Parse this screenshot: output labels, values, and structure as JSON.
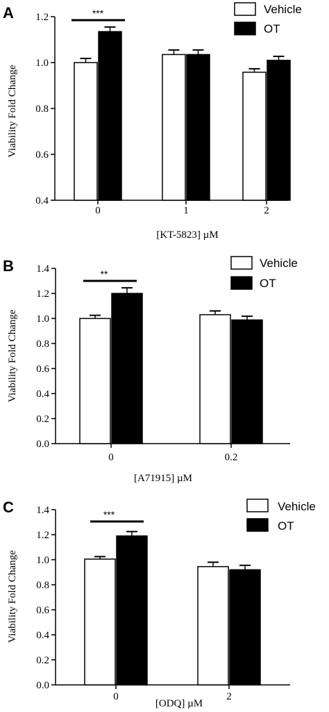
{
  "chart_data": [
    {
      "panel": "A",
      "type": "bar",
      "xlabel": "[KT-5823] µM",
      "ylabel": "Viability Fold Change",
      "ylim": [
        0.4,
        1.2
      ],
      "yticks": [
        "0.4",
        "0.6",
        "0.8",
        "1.0",
        "1.2"
      ],
      "categories": [
        "0",
        "1",
        "2"
      ],
      "series": [
        {
          "name": "Vehicle",
          "values": [
            1.0,
            1.035,
            0.958
          ],
          "errors": [
            0.018,
            0.02,
            0.015
          ],
          "fill": "#ffffff"
        },
        {
          "name": "OT",
          "values": [
            1.135,
            1.035,
            1.01
          ],
          "errors": [
            0.02,
            0.02,
            0.017
          ],
          "fill": "#000000"
        }
      ],
      "significance": [
        {
          "label": "***",
          "category": 0
        }
      ],
      "legend_position": "top-right"
    },
    {
      "panel": "B",
      "type": "bar",
      "xlabel": "[A71915] µM",
      "ylabel": "Viability Fold Change",
      "ylim": [
        0.0,
        1.4
      ],
      "yticks": [
        "0.0",
        "0.2",
        "0.4",
        "0.6",
        "0.8",
        "1.0",
        "1.2",
        "1.4"
      ],
      "categories": [
        "0",
        "0.2"
      ],
      "series": [
        {
          "name": "Vehicle",
          "values": [
            1.0,
            1.03
          ],
          "errors": [
            0.025,
            0.03
          ],
          "fill": "#ffffff"
        },
        {
          "name": "OT",
          "values": [
            1.2,
            0.988
          ],
          "errors": [
            0.045,
            0.03
          ],
          "fill": "#000000"
        }
      ],
      "significance": [
        {
          "label": "**",
          "category": 0
        }
      ],
      "legend_position": "top-right"
    },
    {
      "panel": "C",
      "type": "bar",
      "xlabel": "[ODQ] µM",
      "ylabel": "Viability Fold Change",
      "ylim": [
        0.0,
        1.4
      ],
      "yticks": [
        "0.0",
        "0.2",
        "0.4",
        "0.6",
        "0.8",
        "1.0",
        "1.2",
        "1.4"
      ],
      "categories": [
        "0",
        "2"
      ],
      "series": [
        {
          "name": "Vehicle",
          "values": [
            1.005,
            0.945
          ],
          "errors": [
            0.02,
            0.035
          ],
          "fill": "#ffffff"
        },
        {
          "name": "OT",
          "values": [
            1.19,
            0.92
          ],
          "errors": [
            0.035,
            0.035
          ],
          "fill": "#000000"
        }
      ],
      "significance": [
        {
          "label": "***",
          "category": 0
        }
      ],
      "legend_position": "top-right"
    }
  ]
}
